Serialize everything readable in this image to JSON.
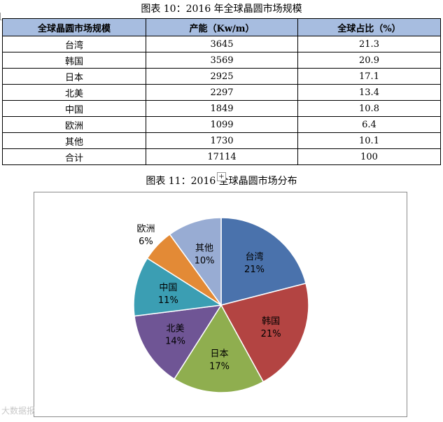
{
  "caption_table": "图表 10：2016 年全球晶圆市场规模",
  "caption_chart": "图表 11：2016 全球晶圆市场分布",
  "table": {
    "headers": [
      "全球晶圆市场规模",
      "产能（Kw/m）",
      "全球占比（%）"
    ],
    "rows": [
      [
        "台湾",
        "3645",
        "21.3"
      ],
      [
        "韩国",
        "3569",
        "20.9"
      ],
      [
        "日本",
        "2925",
        "17.1"
      ],
      [
        "北美",
        "2297",
        "13.4"
      ],
      [
        "中国",
        "1849",
        "10.8"
      ],
      [
        "欧洲",
        "1099",
        "6.4"
      ],
      [
        "其他",
        "1730",
        "10.1"
      ],
      [
        "合计",
        "17114",
        "100"
      ]
    ]
  },
  "chart_data": {
    "type": "pie",
    "categories": [
      "台湾",
      "韩国",
      "日本",
      "北美",
      "中国",
      "欧洲",
      "其他"
    ],
    "values": [
      21,
      21,
      17,
      14,
      11,
      6,
      10
    ],
    "labels": [
      "21%",
      "21%",
      "17%",
      "14%",
      "11%",
      "6%",
      "10%"
    ],
    "colors": [
      "#4a72ac",
      "#b34442",
      "#8fae4f",
      "#6f5595",
      "#3b9eb3",
      "#e38a36",
      "#98acd3"
    ],
    "start_angle_deg": 0,
    "direction": "clockwise"
  },
  "handle_symbol": "+",
  "watermark": "大数据报"
}
